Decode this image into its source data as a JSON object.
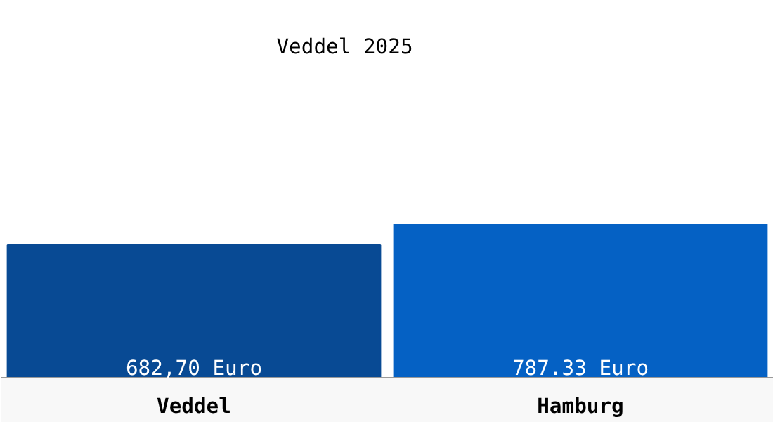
{
  "chart_data": {
    "type": "bar",
    "title": "Veddel 2025",
    "categories": [
      "Veddel",
      "Hamburg"
    ],
    "values": [
      682.7,
      787.33
    ],
    "colors": [
      "#084a94",
      "#0561c4"
    ],
    "value_labels": [
      "682,70 Euro",
      "787.33 Euro"
    ],
    "grid": false
  }
}
